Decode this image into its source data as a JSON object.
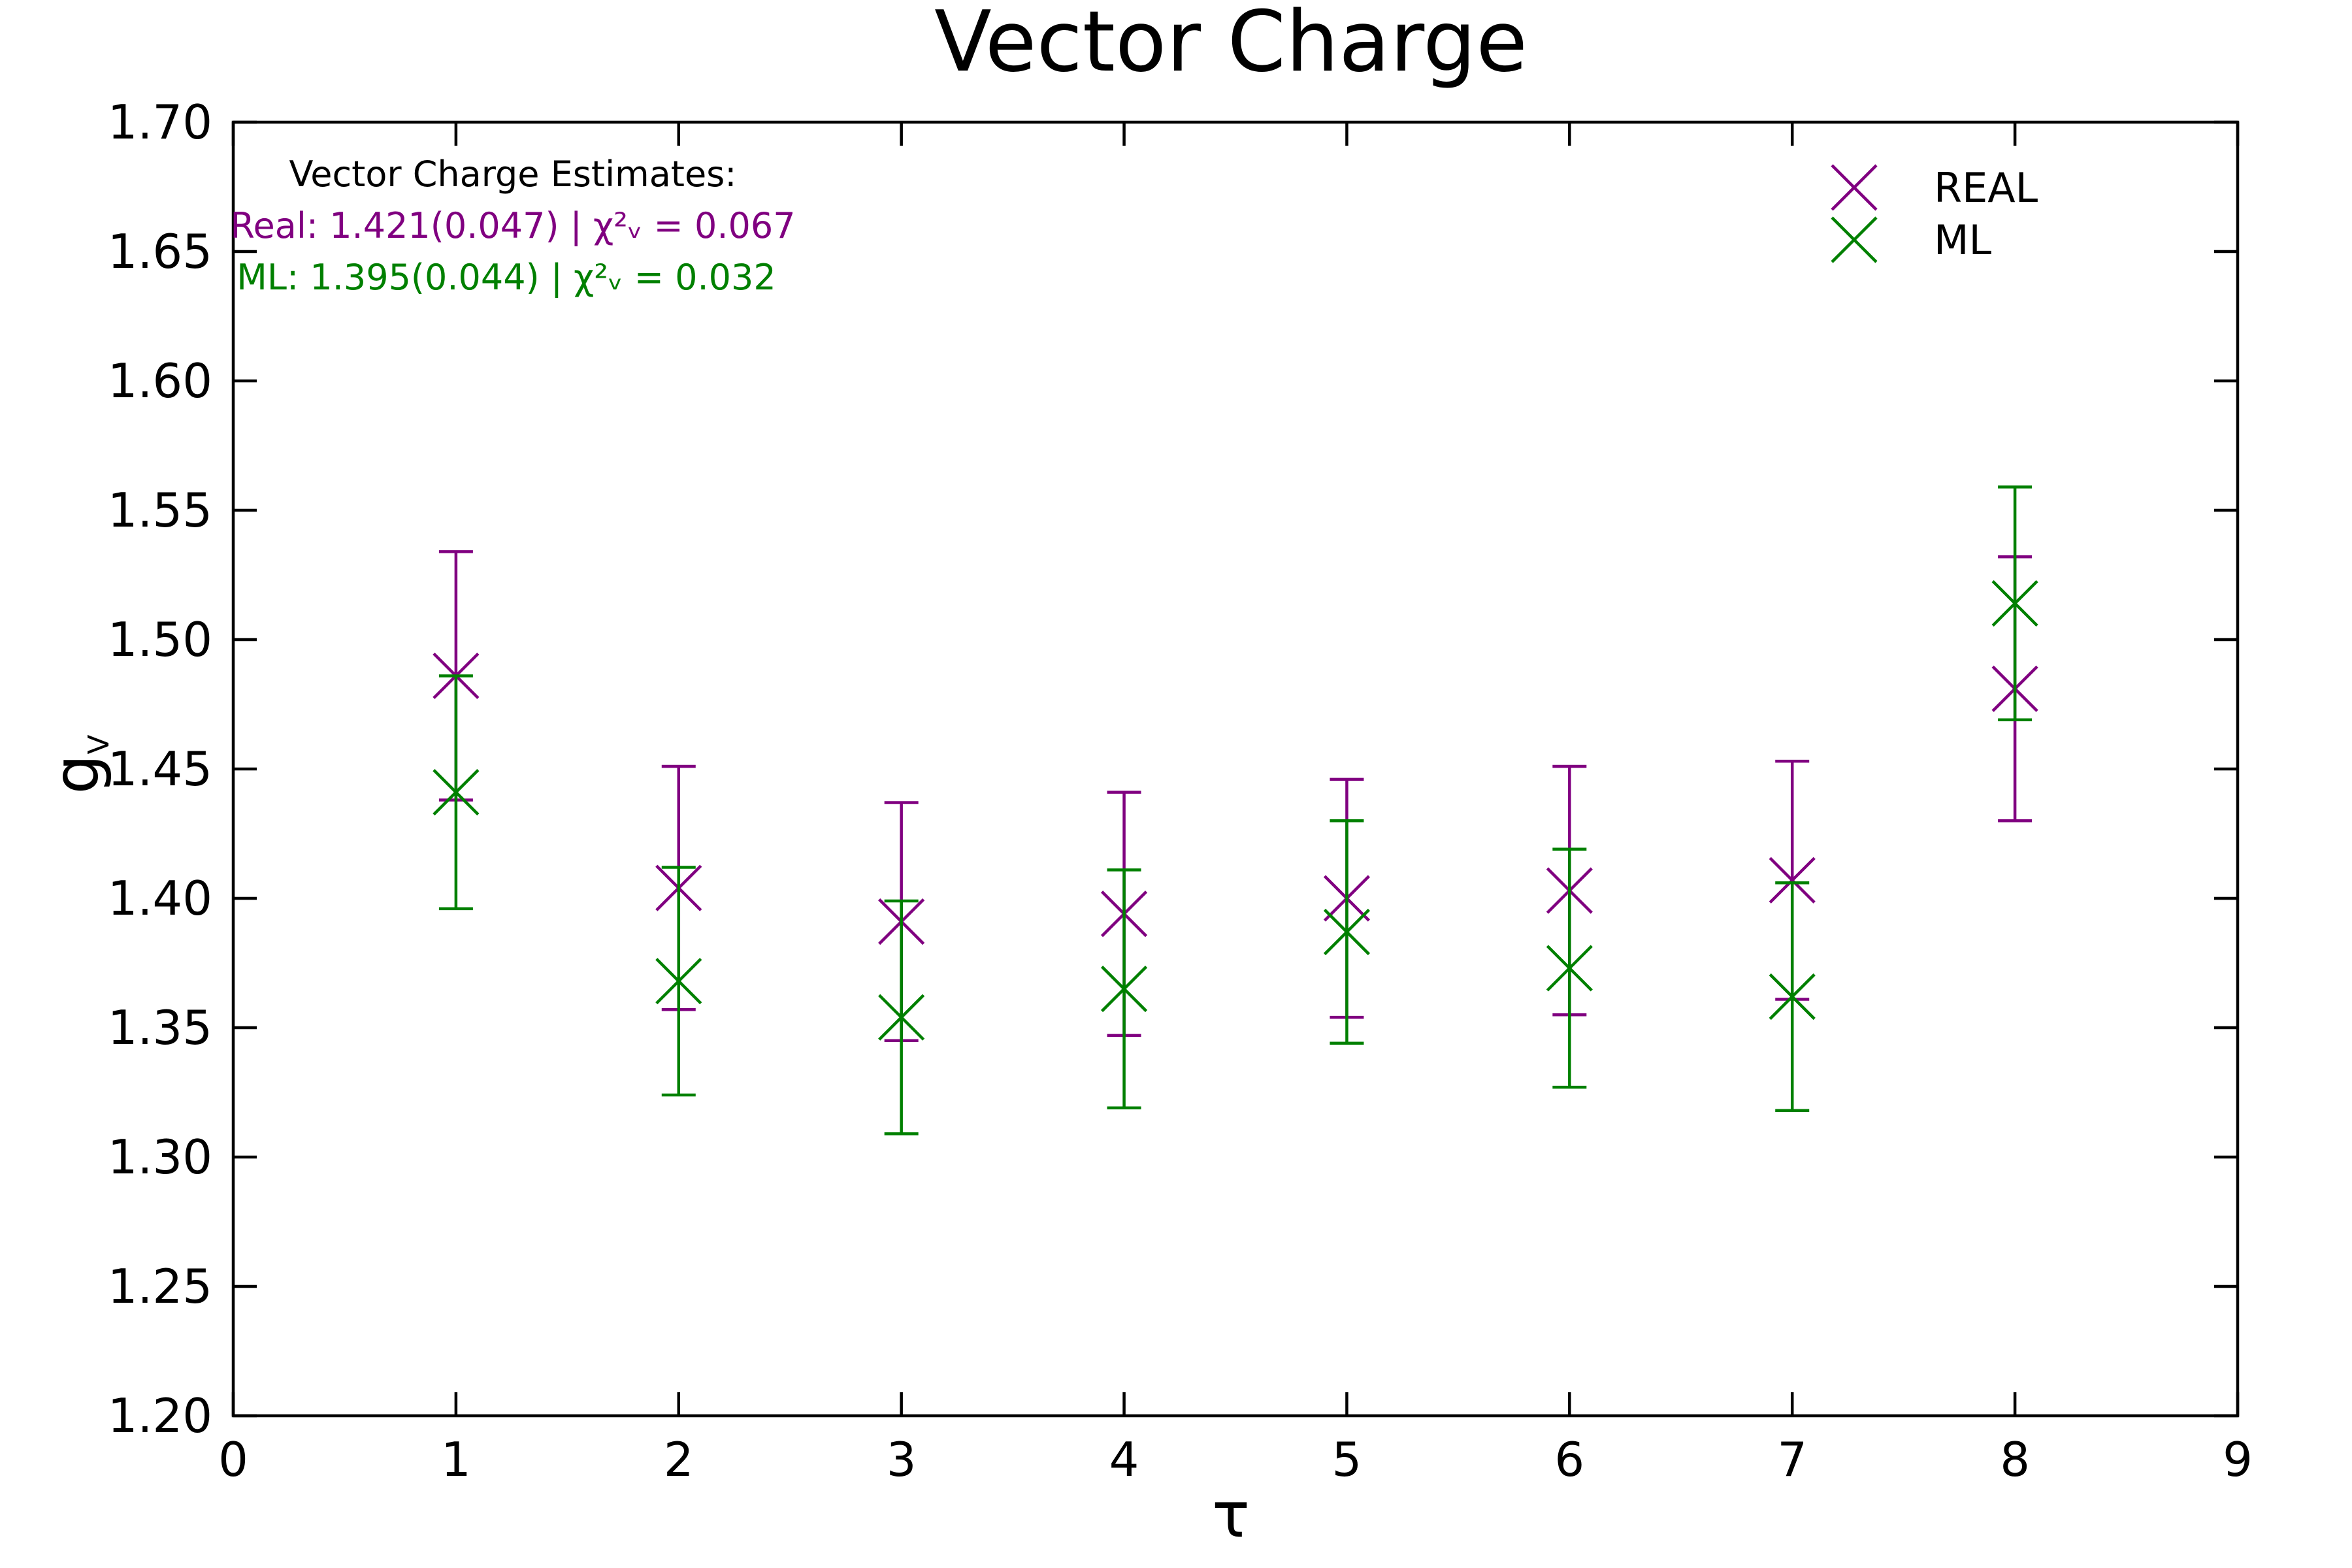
{
  "chart_data": {
    "type": "scatter",
    "title": "Vector Charge",
    "xlabel": "τ",
    "ylabel": "g",
    "ylabel_sub": "V",
    "xlim": [
      0,
      9
    ],
    "ylim": [
      1.2,
      1.7
    ],
    "xticks": [
      "0",
      "1",
      "2",
      "3",
      "4",
      "5",
      "6",
      "7",
      "8",
      "9"
    ],
    "yticks": [
      "1.20",
      "1.25",
      "1.30",
      "1.35",
      "1.40",
      "1.45",
      "1.50",
      "1.55",
      "1.60",
      "1.65",
      "1.70"
    ],
    "grid": false,
    "legend_position": "top-right",
    "series": [
      {
        "name": "REAL",
        "color": "#800080",
        "marker": "x",
        "x": [
          1,
          2,
          3,
          4,
          5,
          6,
          7,
          8
        ],
        "y": [
          1.486,
          1.404,
          1.391,
          1.394,
          1.4,
          1.403,
          1.407,
          1.481
        ],
        "err": [
          0.048,
          0.047,
          0.046,
          0.047,
          0.046,
          0.048,
          0.046,
          0.051
        ]
      },
      {
        "name": "ML",
        "color": "#008000",
        "marker": "x",
        "x": [
          1,
          2,
          3,
          4,
          5,
          6,
          7,
          8
        ],
        "y": [
          1.441,
          1.368,
          1.354,
          1.365,
          1.387,
          1.373,
          1.362,
          1.514
        ],
        "err": [
          0.045,
          0.044,
          0.045,
          0.046,
          0.043,
          0.046,
          0.044,
          0.045
        ]
      }
    ],
    "annotations": {
      "heading": "Vector Charge Estimates:",
      "lines": [
        {
          "text": "Real: 1.421(0.047) | χ²ᵥ = 0.067",
          "color": "#800080"
        },
        {
          "text": "ML: 1.395(0.044) | χ²ᵥ = 0.032",
          "color": "#008000"
        }
      ]
    }
  }
}
